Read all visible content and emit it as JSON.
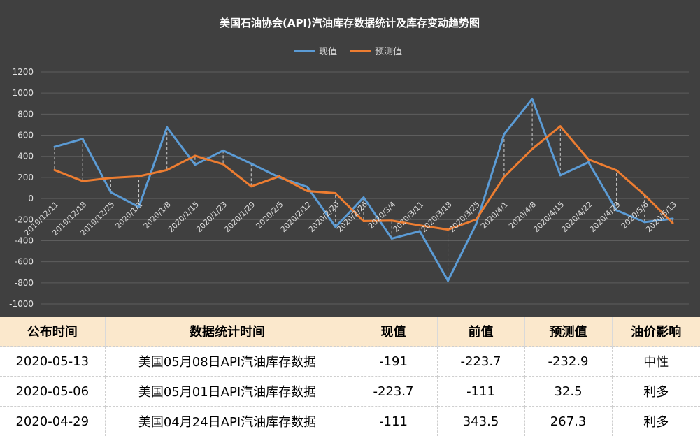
{
  "chart_data": {
    "type": "line",
    "title": "美国石油协会(API)汽油库存数据统计及库存变动趋势图",
    "categories": [
      "2019/12/11",
      "2019/12/18",
      "2019/12/25",
      "2020/1/1",
      "2020/1/8",
      "2020/1/15",
      "2020/1/23",
      "2020/1/29",
      "2020/2/5",
      "2020/2/12",
      "2020/2/20",
      "2020/2/26",
      "2020/3/4",
      "2020/3/11",
      "2020/3/18",
      "2020/3/25",
      "2020/4/1",
      "2020/4/8",
      "2020/4/15",
      "2020/4/22",
      "2020/4/29",
      "2020/5/6",
      "2020/5/13"
    ],
    "series": [
      {
        "name": "现值",
        "color": "#5b9bd5",
        "values": [
          490,
          565,
          60,
          -80,
          675,
          320,
          455,
          330,
          200,
          110,
          -270,
          10,
          -380,
          -310,
          -780,
          -245,
          610,
          945,
          220,
          343.5,
          -111,
          -223.7,
          -191
        ]
      },
      {
        "name": "预测值",
        "color": "#ed7d31",
        "values": [
          270,
          165,
          195,
          210,
          270,
          405,
          325,
          115,
          210,
          70,
          50,
          -215,
          -210,
          -255,
          -295,
          -200,
          205,
          470,
          685,
          370,
          267.3,
          32.5,
          -232.9
        ]
      }
    ],
    "ylim": [
      -1000,
      1200
    ],
    "yticks": [
      "1200",
      "1000",
      "800",
      "600",
      "400",
      "200",
      "0",
      "-200",
      "-400",
      "-600",
      "-800",
      "-1000"
    ],
    "legend_position": "top",
    "grid": true,
    "drop_lines": true
  },
  "table": {
    "headers": [
      "公布时间",
      "数据统计时间",
      "现值",
      "前值",
      "预测值",
      "油价影响"
    ],
    "rows": [
      [
        "2020-05-13",
        "美国05月08日API汽油库存数据",
        "-191",
        "-223.7",
        "-232.9",
        "中性"
      ],
      [
        "2020-05-06",
        "美国05月01日API汽油库存数据",
        "-223.7",
        "-111",
        "32.5",
        "利多"
      ],
      [
        "2020-04-29",
        "美国04月24日API汽油库存数据",
        "-111",
        "343.5",
        "267.3",
        "利多"
      ]
    ]
  }
}
